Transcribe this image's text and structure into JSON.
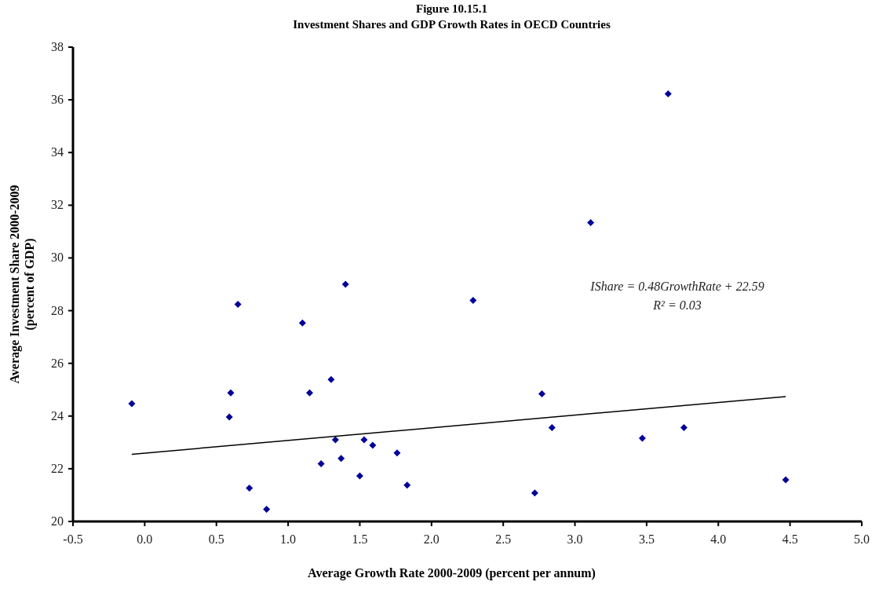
{
  "chart_data": {
    "type": "scatter",
    "title": "Figure 10.15.1",
    "subtitle": "Investment Shares and GDP Growth Rates in OECD Countries",
    "xlabel": "Average Growth Rate 2000-2009 (percent per annum)",
    "ylabel": "Average Investment Share 2000-2009\n(percent of GDP)",
    "xlim": [
      -0.5,
      5.0
    ],
    "xticks": [
      {
        "value": -0.5,
        "label": "-0.5"
      },
      {
        "value": 0,
        "label": "0.0"
      },
      {
        "value": 0.5,
        "label": "0.5"
      },
      {
        "value": 1,
        "label": "1.0"
      },
      {
        "value": 1.5,
        "label": "1.5"
      },
      {
        "value": 2,
        "label": "2.0"
      },
      {
        "value": 2.5,
        "label": "2.5"
      },
      {
        "value": 3,
        "label": "3.0"
      },
      {
        "value": 3.5,
        "label": "3.5"
      },
      {
        "value": 4,
        "label": "4.0"
      },
      {
        "value": 4.5,
        "label": "4.5"
      },
      {
        "value": 5,
        "label": "5.0"
      }
    ],
    "ylim": [
      20,
      38
    ],
    "yticks": [
      20,
      22,
      24,
      26,
      28,
      30,
      32,
      34,
      36,
      38
    ],
    "grid": false,
    "marker": "diamond",
    "series": [
      {
        "color": "#000099",
        "x": [
          -0.09,
          0.59,
          0.6,
          0.65,
          0.73,
          0.85,
          1.1,
          1.15,
          1.23,
          1.3,
          1.33,
          1.37,
          1.4,
          1.5,
          1.53,
          1.59,
          1.76,
          1.83,
          2.29,
          2.72,
          2.77,
          2.84,
          3.11,
          3.47,
          3.65,
          3.76,
          4.47
        ],
        "values": [
          24.47,
          23.96,
          24.88,
          28.24,
          21.27,
          20.46,
          27.53,
          24.88,
          22.19,
          25.39,
          23.1,
          22.39,
          29.0,
          21.73,
          23.1,
          22.89,
          22.6,
          21.38,
          28.39,
          21.08,
          24.84,
          23.56,
          31.34,
          23.16,
          36.23,
          23.56,
          21.58
        ]
      },
      {
        "type": "line",
        "color": "#000000",
        "marker": "none",
        "x": [
          -0.09,
          4.47
        ],
        "values": [
          22.55,
          24.74
        ]
      }
    ],
    "annotations": [
      "IShare = 0.48GrowthRate + 22.59",
      "R² = 0.03"
    ]
  }
}
